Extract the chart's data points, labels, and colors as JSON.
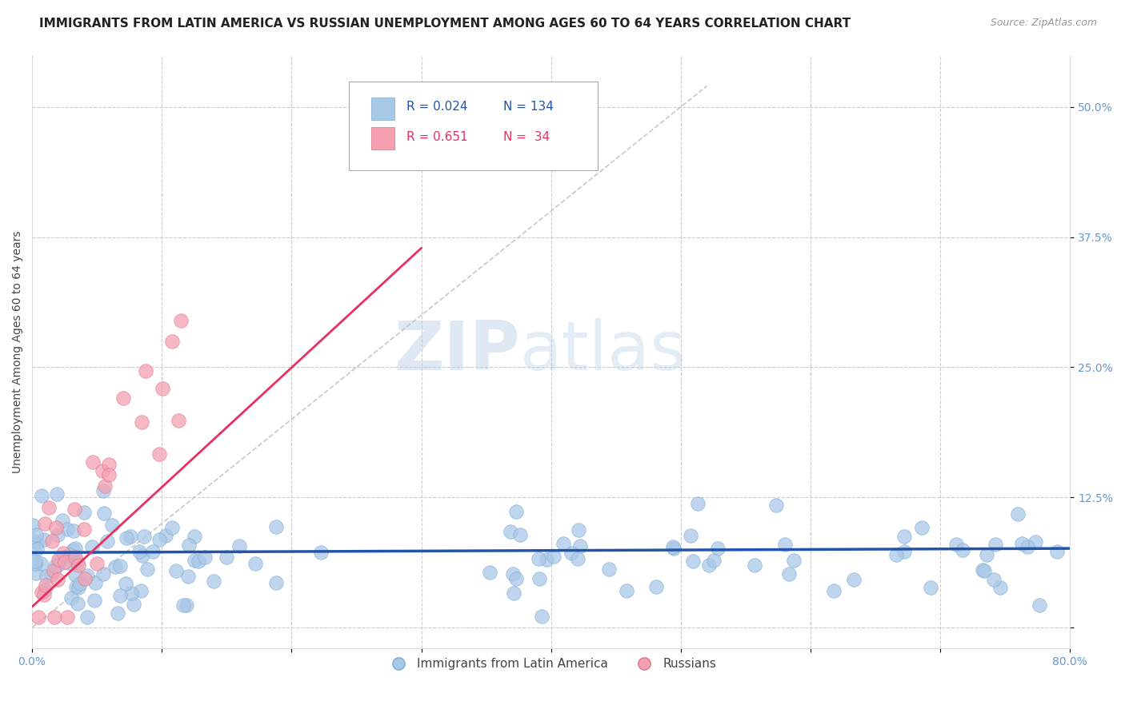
{
  "title": "IMMIGRANTS FROM LATIN AMERICA VS RUSSIAN UNEMPLOYMENT AMONG AGES 60 TO 64 YEARS CORRELATION CHART",
  "source": "Source: ZipAtlas.com",
  "ylabel": "Unemployment Among Ages 60 to 64 years",
  "xlim": [
    0.0,
    0.8
  ],
  "ylim": [
    -0.02,
    0.55
  ],
  "ytick_positions": [
    0.0,
    0.125,
    0.25,
    0.375,
    0.5
  ],
  "ytick_labels": [
    "",
    "12.5%",
    "25.0%",
    "37.5%",
    "50.0%"
  ],
  "xtick_positions": [
    0.0,
    0.1,
    0.2,
    0.3,
    0.4,
    0.5,
    0.6,
    0.7,
    0.8
  ],
  "xtick_labels": [
    "0.0%",
    "",
    "",
    "",
    "",
    "",
    "",
    "",
    "80.0%"
  ],
  "blue_color": "#a8c8e8",
  "blue_edge_color": "#7aaad0",
  "blue_line_color": "#2255aa",
  "pink_color": "#f4a0b0",
  "pink_edge_color": "#e07088",
  "pink_line_color": "#e83060",
  "diagonal_color": "#bbbbbb",
  "tick_color": "#6699cc",
  "legend_blue_R": "0.024",
  "legend_blue_N": "134",
  "legend_pink_R": "0.651",
  "legend_pink_N": "34",
  "watermark_zip": "ZIP",
  "watermark_atlas": "atlas",
  "title_fontsize": 11,
  "axis_label_fontsize": 10,
  "tick_fontsize": 10
}
